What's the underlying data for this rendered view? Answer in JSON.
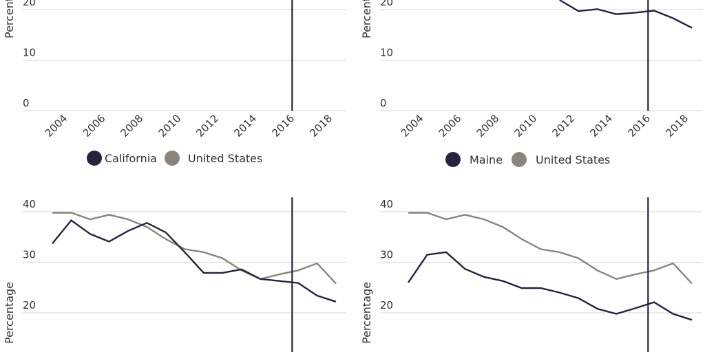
{
  "colors": {
    "state": "#27233f",
    "us": "#8a847b",
    "grid": "#dddddd",
    "marker": "#27233f"
  },
  "chart_data": [
    {
      "type": "line",
      "ylabel": "Percentage",
      "y_ticks": [
        0,
        10,
        20
      ],
      "x_ticks": [
        "2004",
        "2006",
        "2008",
        "2010",
        "2012",
        "2014",
        "2016",
        "2018"
      ],
      "marker_year": 2016,
      "grid": true,
      "legend": {
        "position": "bottom",
        "entries": [
          "California",
          "United States"
        ]
      },
      "x": [],
      "series": []
    },
    {
      "type": "line",
      "ylabel": "Percentage",
      "y_ticks": [
        0,
        10,
        20
      ],
      "x_ticks": [
        "2004",
        "2006",
        "2008",
        "2010",
        "2012",
        "2014",
        "2016",
        "2018"
      ],
      "marker_year": 2016,
      "grid": true,
      "legend": {
        "position": "bottom",
        "entries": [
          "Maine",
          "United States"
        ]
      },
      "x": [
        2011,
        2012,
        2013,
        2014,
        2015,
        2016,
        2017,
        2018
      ],
      "series": [
        {
          "name": "Maine",
          "values": [
            21.9,
            19.7,
            20.1,
            19.1,
            19.4,
            19.8,
            18.3,
            16.4
          ]
        }
      ]
    },
    {
      "type": "line",
      "ylabel": "Percentage",
      "y_ticks": [
        20,
        30,
        40
      ],
      "marker_year": 2016,
      "grid": true,
      "x": [
        2003,
        2004,
        2005,
        2006,
        2007,
        2008,
        2009,
        2010,
        2011,
        2012,
        2013,
        2014,
        2015,
        2016,
        2017,
        2018
      ],
      "series": [
        {
          "name": "California",
          "values": [
            33.7,
            38.3,
            35.6,
            34.1,
            36.2,
            37.8,
            35.9,
            32.0,
            27.9,
            27.9,
            28.6,
            26.7,
            26.3,
            25.9,
            23.4,
            22.2
          ]
        },
        {
          "name": "United States",
          "values": [
            39.8,
            39.8,
            38.5,
            39.4,
            38.5,
            37.0,
            34.6,
            32.6,
            32.0,
            30.8,
            28.4,
            26.7,
            27.6,
            28.4,
            29.8,
            25.8
          ]
        }
      ]
    },
    {
      "type": "line",
      "ylabel": "Percentage",
      "y_ticks": [
        20,
        30,
        40
      ],
      "marker_year": 2016,
      "grid": true,
      "x": [
        2003,
        2004,
        2005,
        2006,
        2007,
        2008,
        2009,
        2010,
        2011,
        2012,
        2013,
        2014,
        2015,
        2016,
        2017,
        2018
      ],
      "series": [
        {
          "name": "Maine",
          "values": [
            26.0,
            31.5,
            32.0,
            28.7,
            27.1,
            26.3,
            24.9,
            24.9,
            24.0,
            22.9,
            20.8,
            19.8,
            20.9,
            22.1,
            19.8,
            18.6
          ]
        },
        {
          "name": "United States",
          "values": [
            39.8,
            39.8,
            38.5,
            39.4,
            38.5,
            37.0,
            34.6,
            32.6,
            32.0,
            30.8,
            28.4,
            26.7,
            27.6,
            28.4,
            29.8,
            25.8
          ]
        }
      ]
    }
  ]
}
